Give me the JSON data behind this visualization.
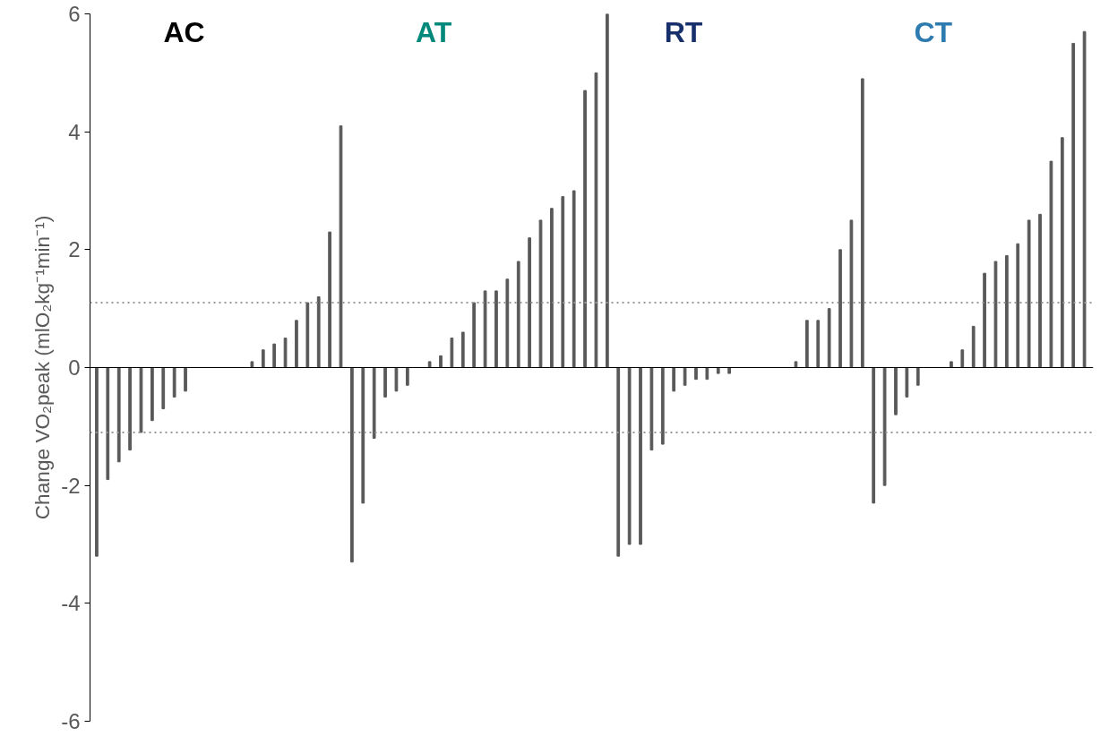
{
  "chart_data": {
    "type": "bar",
    "ylabel": "Change VO₂peak (mlO₂kg⁻¹min⁻¹)",
    "annotations": [
      "AC",
      "AT",
      "RT",
      "CT"
    ],
    "categories": [
      null,
      null,
      null,
      null,
      null,
      null,
      null,
      null,
      null,
      null,
      null,
      null,
      null,
      null,
      null,
      null,
      null,
      null,
      null,
      null,
      null,
      null,
      null,
      null,
      null,
      null,
      null,
      null,
      null,
      null,
      null,
      null,
      null,
      null,
      null,
      null,
      null,
      null,
      null,
      null,
      null,
      null,
      null,
      null,
      null,
      null,
      null,
      null,
      null,
      null,
      null,
      null,
      null,
      null,
      null,
      null,
      null,
      null,
      null,
      null,
      null,
      null,
      null,
      null,
      null,
      null,
      null,
      null,
      null,
      null,
      null,
      null,
      null,
      null,
      null,
      null,
      null,
      null,
      null,
      null,
      null,
      null,
      null,
      null,
      null,
      null,
      null,
      null,
      null,
      null
    ],
    "values": [
      -3.2,
      -1.9,
      -1.6,
      -1.4,
      -1.1,
      -0.9,
      -0.7,
      -0.5,
      -0.4,
      null,
      null,
      null,
      null,
      null,
      0.1,
      0.3,
      0.4,
      0.5,
      0.8,
      1.1,
      1.2,
      2.3,
      4.1,
      -3.3,
      -2.3,
      -1.2,
      -0.5,
      -0.4,
      -0.3,
      null,
      0.1,
      0.2,
      0.5,
      0.6,
      1.1,
      1.3,
      1.3,
      1.5,
      1.8,
      2.2,
      2.5,
      2.7,
      2.9,
      3.0,
      4.7,
      5.0,
      6.0,
      -3.2,
      -3.0,
      -3.0,
      -1.4,
      -1.3,
      -0.4,
      -0.3,
      -0.2,
      -0.2,
      -0.1,
      -0.1,
      null,
      null,
      null,
      null,
      null,
      0.1,
      0.8,
      0.8,
      1.0,
      2.0,
      2.5,
      4.9,
      -2.3,
      -2.0,
      -0.8,
      -0.5,
      -0.3,
      null,
      null,
      0.1,
      0.3,
      0.7,
      1.6,
      1.8,
      1.9,
      2.1,
      2.5,
      2.6,
      3.5,
      3.9,
      5.5,
      5.7
    ],
    "color": "#595959",
    "ylim": [
      -6,
      6
    ],
    "yticks": [
      -6,
      -4,
      -2,
      0,
      2,
      4,
      6
    ],
    "ref_lines": [
      {
        "axis": "y",
        "value": 1.1,
        "color": "#999999",
        "line_style": "dotted"
      },
      {
        "axis": "y",
        "value": -1.1,
        "color": "#999999",
        "line_style": "dotted"
      }
    ],
    "tick_labels": "y"
  }
}
